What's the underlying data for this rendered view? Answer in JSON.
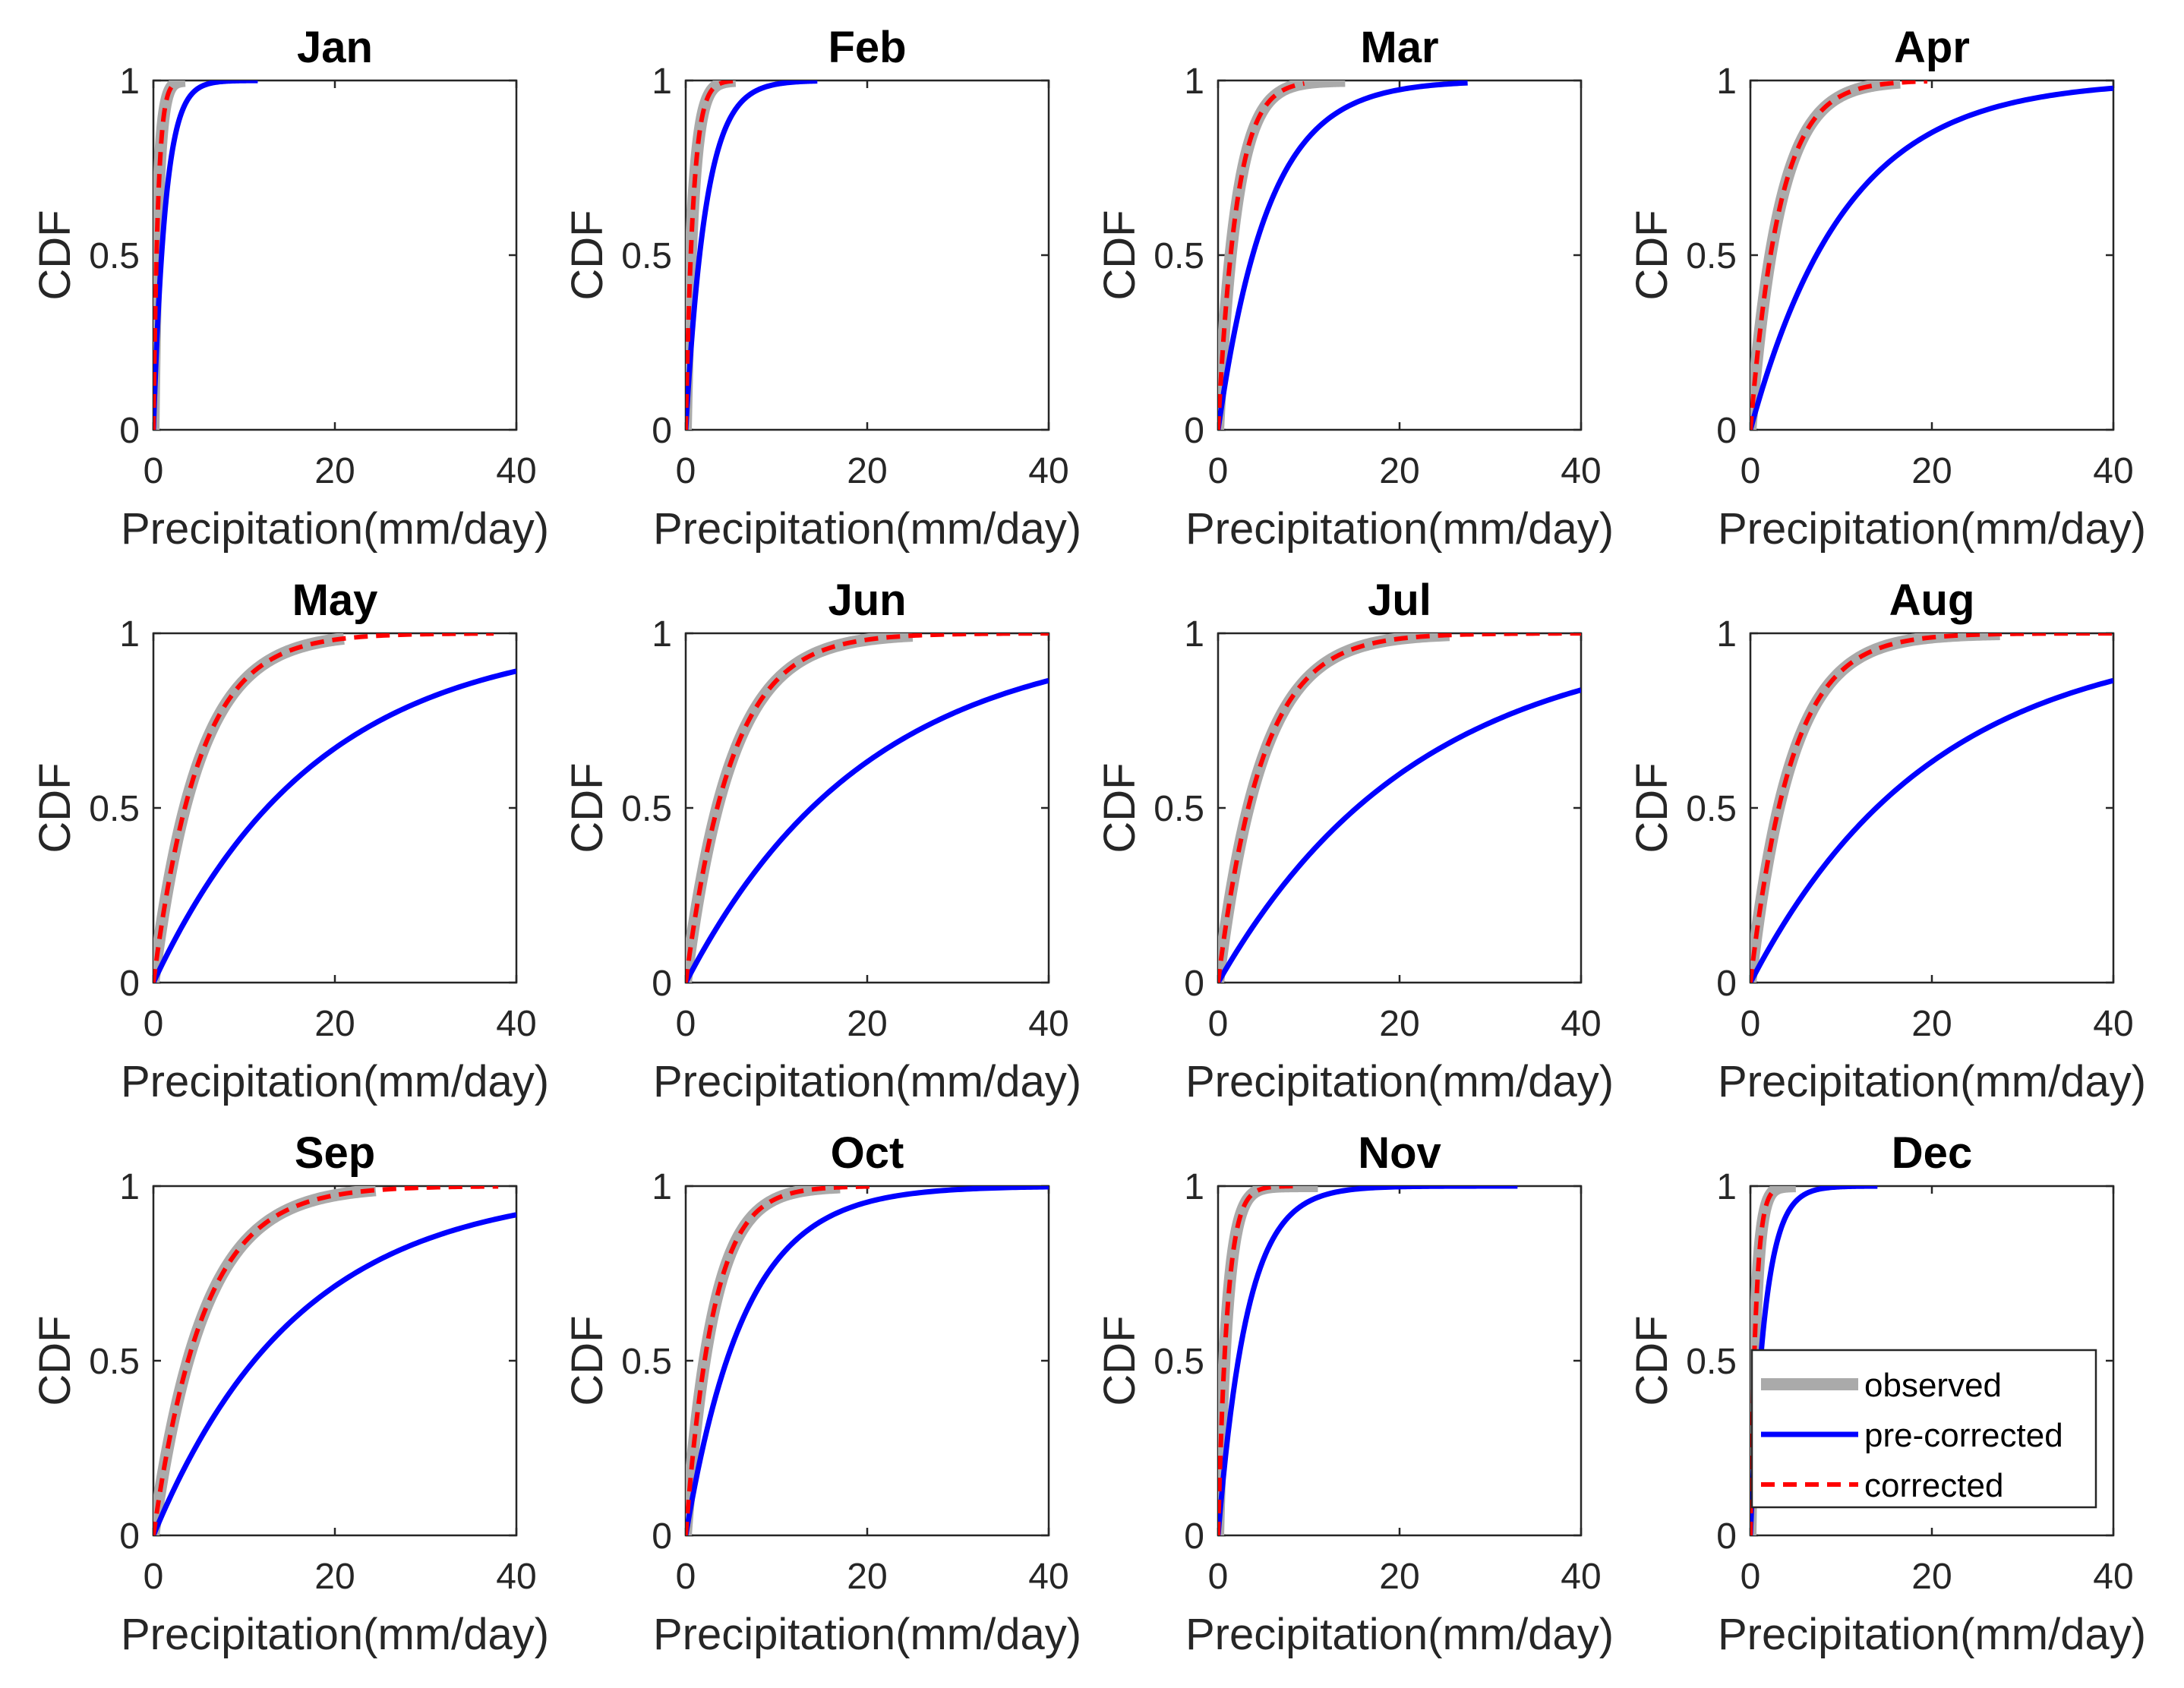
{
  "chart_data": {
    "type": "line",
    "layout": "3x4 grid of monthly CDF panels",
    "xlabel": "Precipitation(mm/day)",
    "ylabel": "CDF",
    "xlim": [
      0,
      40
    ],
    "ylim": [
      0,
      1
    ],
    "xticks": [
      "0",
      "20",
      "40"
    ],
    "yticks": [
      "0",
      "0.5",
      "1"
    ],
    "legend": {
      "location": "lower-right of Dec panel",
      "entries": [
        {
          "key": "observed",
          "label": "observed",
          "color": "#aaaaaa",
          "style": "solid-thick"
        },
        {
          "key": "pre",
          "label": "pre-corrected",
          "color": "#0000ff",
          "style": "solid"
        },
        {
          "key": "corr",
          "label": "corrected",
          "color": "#ff0000",
          "style": "dashed"
        }
      ]
    },
    "panels": [
      {
        "month": "Jan",
        "obs_scale": 0.5,
        "obs_max": 3.5,
        "pre_scale": 1.3,
        "pre_max": 11.5,
        "corr_max": 2.5
      },
      {
        "month": "Feb",
        "obs_scale": 0.8,
        "obs_max": 5.5,
        "pre_scale": 2.2,
        "pre_max": 14.5,
        "corr_max": 5.5
      },
      {
        "month": "Mar",
        "obs_scale": 2.0,
        "obs_max": 14,
        "pre_scale": 5.5,
        "pre_max": 27.5,
        "corr_max": 9.5
      },
      {
        "month": "Apr",
        "obs_scale": 3.2,
        "obs_max": 16.5,
        "pre_scale": 10.5,
        "pre_max": 40,
        "corr_max": 19.5
      },
      {
        "month": "May",
        "obs_scale": 5.0,
        "obs_max": 21,
        "pre_scale": 18.0,
        "pre_max": 40,
        "corr_max": 37.5
      },
      {
        "month": "Jun",
        "obs_scale": 5.0,
        "obs_max": 25,
        "pre_scale": 20.0,
        "pre_max": 40,
        "corr_max": 40
      },
      {
        "month": "Jul",
        "obs_scale": 4.8,
        "obs_max": 25.5,
        "pre_scale": 22.0,
        "pre_max": 40,
        "corr_max": 40
      },
      {
        "month": "Aug",
        "obs_scale": 4.5,
        "obs_max": 27.5,
        "pre_scale": 20.0,
        "pre_max": 40,
        "corr_max": 40
      },
      {
        "month": "Sep",
        "obs_scale": 5.5,
        "obs_max": 24.5,
        "pre_scale": 16.0,
        "pre_max": 40,
        "corr_max": 38
      },
      {
        "month": "Oct",
        "obs_scale": 3.0,
        "obs_max": 17,
        "pre_scale": 6.5,
        "pre_max": 40,
        "corr_max": 21
      },
      {
        "month": "Nov",
        "obs_scale": 1.0,
        "obs_max": 11,
        "pre_scale": 3.2,
        "pre_max": 33,
        "corr_max": 9
      },
      {
        "month": "Dec",
        "obs_scale": 0.6,
        "obs_max": 5,
        "pre_scale": 1.6,
        "pre_max": 14,
        "corr_max": 2.5
      }
    ]
  }
}
